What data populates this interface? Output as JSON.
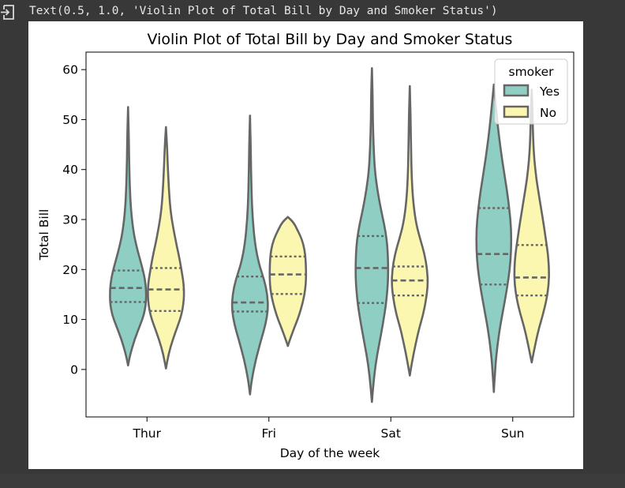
{
  "cell_output": {
    "icon": "output-arrow-icon",
    "text": "Text(0.5, 1.0, 'Violin Plot of Total Bill by Day and Smoker Status')"
  },
  "chart_data": {
    "type": "violin",
    "title": "Violin Plot of Total Bill by Day and Smoker Status",
    "xlabel": "Day of the week",
    "ylabel": "Total Bill",
    "categories": [
      "Thur",
      "Fri",
      "Sat",
      "Sun"
    ],
    "ylim": [
      -9.5,
      63.5
    ],
    "yticks": [
      0,
      10,
      20,
      30,
      40,
      50,
      60
    ],
    "grid": false,
    "inner": "quartile",
    "legend": {
      "title": "smoker",
      "placement": "top-right",
      "entries": [
        {
          "label": "Yes",
          "color": "#8fcfc3"
        },
        {
          "label": "No",
          "color": "#fbf7b0"
        }
      ]
    },
    "colors": {
      "outline": "#666666",
      "Yes": "#8fcfc3",
      "No": "#fbf7b0"
    },
    "series": [
      {
        "name": "Yes",
        "violins": [
          {
            "day": "Thur",
            "min": 0.8,
            "max": 52.5,
            "q1": 13.5,
            "median": 16.3,
            "q3": 19.8,
            "profile": [
              [
                0.8,
                0
              ],
              [
                3,
                0.12
              ],
              [
                6,
                0.36
              ],
              [
                9,
                0.68
              ],
              [
                11,
                0.88
              ],
              [
                13,
                0.98
              ],
              [
                15,
                1.0
              ],
              [
                17,
                0.97
              ],
              [
                19,
                0.88
              ],
              [
                22,
                0.66
              ],
              [
                25,
                0.44
              ],
              [
                28,
                0.28
              ],
              [
                32,
                0.16
              ],
              [
                37,
                0.09
              ],
              [
                42,
                0.06
              ],
              [
                47,
                0.04
              ],
              [
                52.5,
                0
              ]
            ]
          },
          {
            "day": "Fri",
            "min": -5.0,
            "max": 50.8,
            "q1": 11.6,
            "median": 13.4,
            "q3": 18.6,
            "profile": [
              [
                -5,
                0
              ],
              [
                -2,
                0.1
              ],
              [
                2,
                0.32
              ],
              [
                6,
                0.62
              ],
              [
                9,
                0.86
              ],
              [
                12,
                1.0
              ],
              [
                15,
                0.96
              ],
              [
                18,
                0.78
              ],
              [
                21,
                0.5
              ],
              [
                25,
                0.28
              ],
              [
                30,
                0.15
              ],
              [
                35,
                0.09
              ],
              [
                40,
                0.06
              ],
              [
                45,
                0.04
              ],
              [
                50.8,
                0
              ]
            ]
          },
          {
            "day": "Sat",
            "min": -6.5,
            "max": 60.3,
            "q1": 13.3,
            "median": 20.3,
            "q3": 26.7,
            "profile": [
              [
                -6.5,
                0
              ],
              [
                -3,
                0.08
              ],
              [
                1,
                0.2
              ],
              [
                5,
                0.4
              ],
              [
                9,
                0.6
              ],
              [
                13,
                0.78
              ],
              [
                17,
                0.88
              ],
              [
                20,
                0.9
              ],
              [
                23,
                0.88
              ],
              [
                26,
                0.82
              ],
              [
                29,
                0.68
              ],
              [
                32,
                0.5
              ],
              [
                36,
                0.3
              ],
              [
                40,
                0.16
              ],
              [
                45,
                0.09
              ],
              [
                50,
                0.05
              ],
              [
                55,
                0.04
              ],
              [
                60.3,
                0
              ]
            ]
          },
          {
            "day": "Sun",
            "min": -4.5,
            "max": 57.0,
            "q1": 17.0,
            "median": 23.1,
            "q3": 32.3,
            "profile": [
              [
                -4.5,
                0
              ],
              [
                -1,
                0.06
              ],
              [
                3,
                0.14
              ],
              [
                8,
                0.32
              ],
              [
                12,
                0.52
              ],
              [
                16,
                0.72
              ],
              [
                20,
                0.88
              ],
              [
                24,
                0.96
              ],
              [
                28,
                0.96
              ],
              [
                32,
                0.86
              ],
              [
                36,
                0.72
              ],
              [
                40,
                0.54
              ],
              [
                44,
                0.38
              ],
              [
                48,
                0.24
              ],
              [
                52,
                0.13
              ],
              [
                57,
                0
              ]
            ]
          }
        ]
      },
      {
        "name": "No",
        "violins": [
          {
            "day": "Thur",
            "min": 0.2,
            "max": 48.5,
            "q1": 11.7,
            "median": 16.0,
            "q3": 20.3,
            "profile": [
              [
                0.2,
                0
              ],
              [
                3,
                0.14
              ],
              [
                6,
                0.38
              ],
              [
                9,
                0.68
              ],
              [
                11,
                0.86
              ],
              [
                13,
                0.96
              ],
              [
                15,
                1.0
              ],
              [
                17,
                0.98
              ],
              [
                19,
                0.9
              ],
              [
                22,
                0.76
              ],
              [
                25,
                0.58
              ],
              [
                28,
                0.42
              ],
              [
                31,
                0.28
              ],
              [
                35,
                0.18
              ],
              [
                40,
                0.11
              ],
              [
                44,
                0.07
              ],
              [
                48.5,
                0
              ]
            ]
          },
          {
            "day": "Fri",
            "min": 4.7,
            "max": 30.5,
            "q1": 15.1,
            "median": 19.0,
            "q3": 22.6,
            "profile": [
              [
                4.7,
                0
              ],
              [
                6,
                0.12
              ],
              [
                8,
                0.32
              ],
              [
                10,
                0.54
              ],
              [
                12,
                0.72
              ],
              [
                14,
                0.86
              ],
              [
                16,
                0.96
              ],
              [
                18,
                1.0
              ],
              [
                20,
                1.0
              ],
              [
                22,
                0.98
              ],
              [
                24,
                0.92
              ],
              [
                26,
                0.78
              ],
              [
                28,
                0.52
              ],
              [
                29.5,
                0.3
              ],
              [
                30.5,
                0
              ]
            ]
          },
          {
            "day": "Sat",
            "min": -1.2,
            "max": 56.7,
            "q1": 14.8,
            "median": 17.8,
            "q3": 20.6,
            "profile": [
              [
                -1.2,
                0
              ],
              [
                1,
                0.1
              ],
              [
                4,
                0.26
              ],
              [
                8,
                0.5
              ],
              [
                11,
                0.74
              ],
              [
                14,
                0.9
              ],
              [
                17,
                1.0
              ],
              [
                20,
                0.96
              ],
              [
                23,
                0.82
              ],
              [
                26,
                0.58
              ],
              [
                29,
                0.36
              ],
              [
                33,
                0.2
              ],
              [
                38,
                0.11
              ],
              [
                44,
                0.07
              ],
              [
                50,
                0.05
              ],
              [
                56.7,
                0
              ]
            ]
          },
          {
            "day": "Sun",
            "min": 1.4,
            "max": 56.0,
            "q1": 14.8,
            "median": 18.4,
            "q3": 24.9,
            "profile": [
              [
                1.4,
                0
              ],
              [
                4,
                0.14
              ],
              [
                8,
                0.38
              ],
              [
                11,
                0.62
              ],
              [
                14,
                0.82
              ],
              [
                17,
                0.94
              ],
              [
                20,
                0.96
              ],
              [
                23,
                0.9
              ],
              [
                26,
                0.78
              ],
              [
                30,
                0.62
              ],
              [
                34,
                0.44
              ],
              [
                38,
                0.26
              ],
              [
                42,
                0.14
              ],
              [
                46,
                0.08
              ],
              [
                51,
                0.05
              ],
              [
                56,
                0
              ]
            ]
          }
        ]
      }
    ]
  }
}
